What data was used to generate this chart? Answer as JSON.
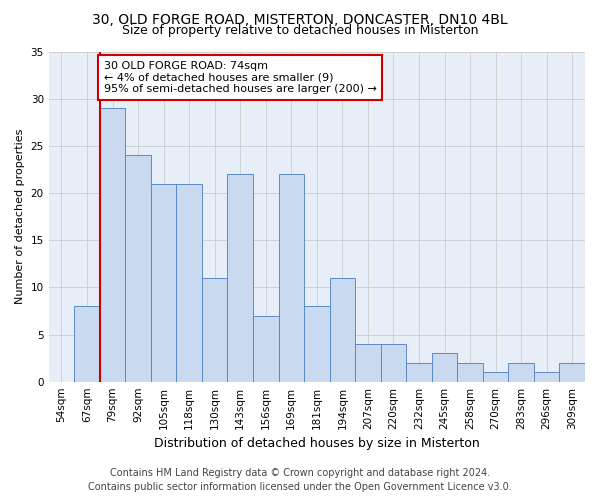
{
  "title_line1": "30, OLD FORGE ROAD, MISTERTON, DONCASTER, DN10 4BL",
  "title_line2": "Size of property relative to detached houses in Misterton",
  "xlabel": "Distribution of detached houses by size in Misterton",
  "ylabel": "Number of detached properties",
  "categories": [
    "54sqm",
    "67sqm",
    "79sqm",
    "92sqm",
    "105sqm",
    "118sqm",
    "130sqm",
    "143sqm",
    "156sqm",
    "169sqm",
    "181sqm",
    "194sqm",
    "207sqm",
    "220sqm",
    "232sqm",
    "245sqm",
    "258sqm",
    "270sqm",
    "283sqm",
    "296sqm",
    "309sqm"
  ],
  "values": [
    0,
    8,
    29,
    24,
    21,
    21,
    11,
    22,
    7,
    22,
    8,
    11,
    4,
    4,
    2,
    3,
    2,
    1,
    2,
    1,
    2
  ],
  "bar_color": "#c9d9f0",
  "bar_edge_color": "#5b8bc5",
  "vline_color": "#cc0000",
  "vline_x": 1.5,
  "annotation_text": "30 OLD FORGE ROAD: 74sqm\n← 4% of detached houses are smaller (9)\n95% of semi-detached houses are larger (200) →",
  "annotation_box_color": "#ffffff",
  "annotation_box_edge": "#cc0000",
  "ylim": [
    0,
    35
  ],
  "yticks": [
    0,
    5,
    10,
    15,
    20,
    25,
    30,
    35
  ],
  "grid_color": "#cccccc",
  "bg_color": "#e8eef8",
  "footer_line1": "Contains HM Land Registry data © Crown copyright and database right 2024.",
  "footer_line2": "Contains public sector information licensed under the Open Government Licence v3.0.",
  "title_fontsize": 10,
  "subtitle_fontsize": 9,
  "ylabel_fontsize": 8,
  "xlabel_fontsize": 9,
  "tick_fontsize": 7.5,
  "annotation_fontsize": 8,
  "footer_fontsize": 7
}
